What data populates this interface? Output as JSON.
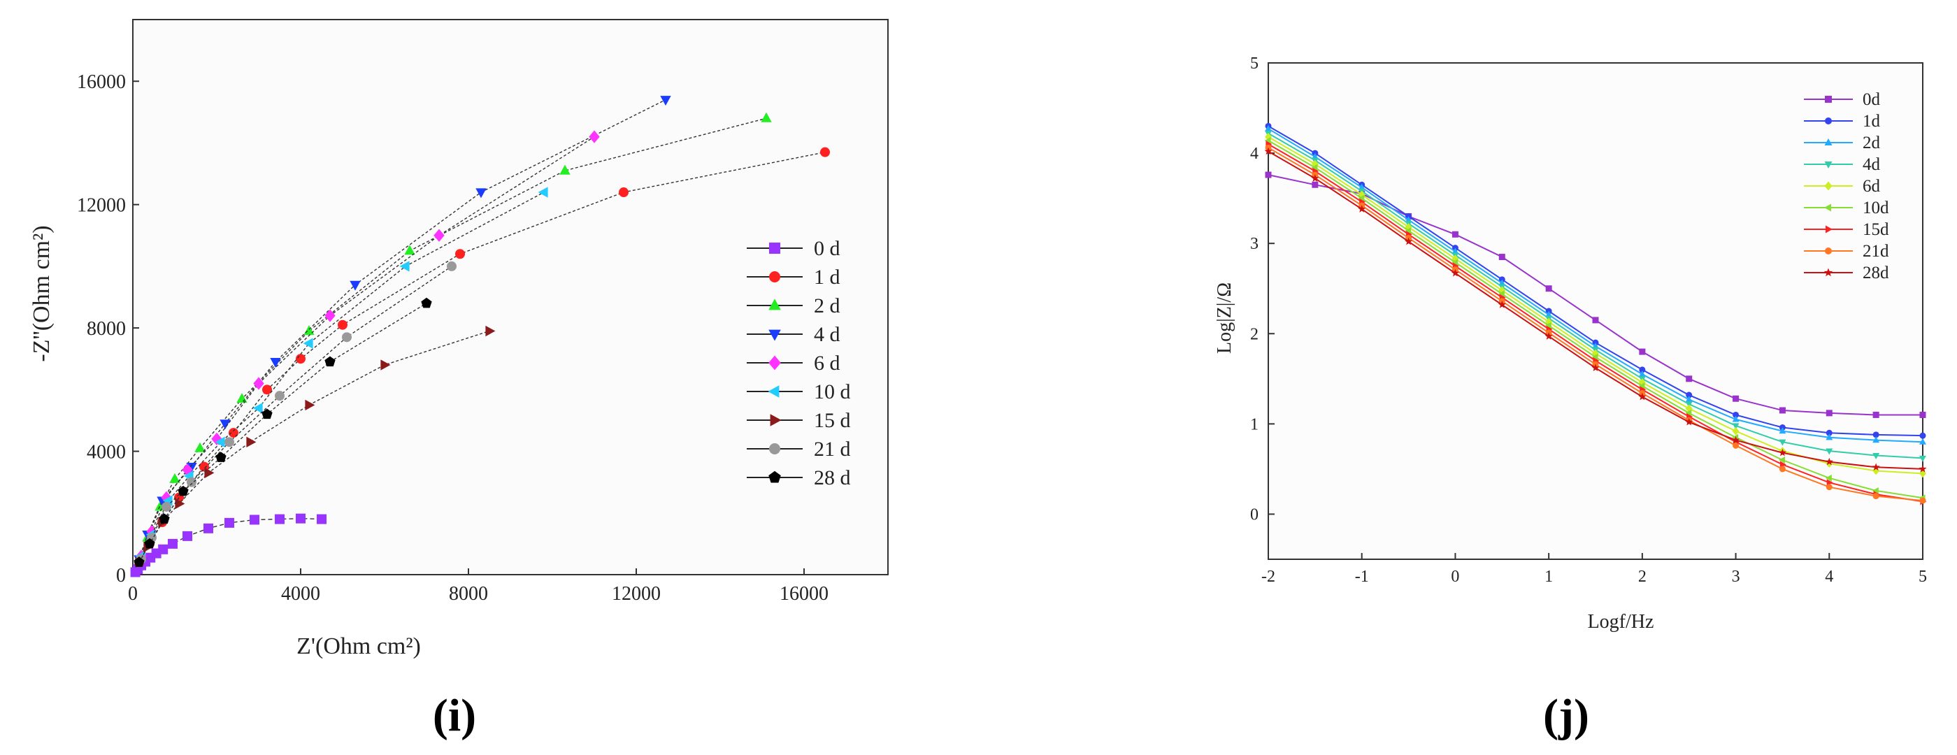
{
  "chart_data": [
    {
      "type": "scatter",
      "title": "",
      "panel_label": "(i)",
      "xlabel": "Z'(Ohm cm²)",
      "ylabel": "-Z''(Ohm cm²)",
      "xlim": [
        0,
        18000
      ],
      "ylim": [
        0,
        18000
      ],
      "xticks": [
        0,
        4000,
        8000,
        12000,
        16000
      ],
      "yticks": [
        0,
        4000,
        8000,
        12000,
        16000
      ],
      "grid": false,
      "legend_position": "right",
      "series": [
        {
          "name": "0 d",
          "color": "#9933ff",
          "marker": "square",
          "x": [
            60,
            120,
            200,
            300,
            420,
            560,
            720,
            950,
            1300,
            1800,
            2300,
            2900,
            3500,
            4000,
            4500
          ],
          "y": [
            80,
            180,
            300,
            420,
            550,
            690,
            820,
            1000,
            1250,
            1500,
            1680,
            1780,
            1800,
            1820,
            1800
          ]
        },
        {
          "name": "1 d",
          "color": "#ff2020",
          "marker": "circle",
          "x": [
            150,
            400,
            700,
            1100,
            1700,
            2400,
            3200,
            4000,
            5000,
            7800,
            11700,
            16500
          ],
          "y": [
            400,
            1000,
            1700,
            2500,
            3500,
            4600,
            6000,
            7000,
            8100,
            10400,
            12400,
            13700
          ]
        },
        {
          "name": "2 d",
          "color": "#22ee22",
          "marker": "triangle-up",
          "x": [
            150,
            350,
            650,
            1000,
            1600,
            2600,
            4200,
            6600,
            10300,
            15100
          ],
          "y": [
            500,
            1200,
            2200,
            3100,
            4100,
            5700,
            7900,
            10500,
            13100,
            14800
          ]
        },
        {
          "name": "4 d",
          "color": "#1a3cff",
          "marker": "triangle-down",
          "x": [
            150,
            350,
            700,
            1400,
            2200,
            3400,
            5300,
            8300,
            12700
          ],
          "y": [
            500,
            1300,
            2400,
            3500,
            4900,
            6900,
            9400,
            12400,
            15400
          ]
        },
        {
          "name": "6 d",
          "color": "#ff33ff",
          "marker": "diamond",
          "x": [
            200,
            450,
            800,
            1300,
            2000,
            3000,
            4700,
            7300,
            11000
          ],
          "y": [
            600,
            1400,
            2500,
            3400,
            4400,
            6200,
            8400,
            11000,
            14200
          ]
        },
        {
          "name": "10 d",
          "color": "#22ccff",
          "marker": "triangle-left",
          "x": [
            200,
            450,
            850,
            1350,
            2100,
            3000,
            4200,
            6500,
            9800
          ],
          "y": [
            600,
            1300,
            2400,
            3200,
            4300,
            5400,
            7500,
            10000,
            12400
          ]
        },
        {
          "name": "15 d",
          "color": "#8b1a1a",
          "marker": "triangle-right",
          "x": [
            150,
            350,
            700,
            1100,
            1800,
            2800,
            4200,
            6000,
            8500
          ],
          "y": [
            400,
            900,
            1700,
            2300,
            3300,
            4300,
            5500,
            6800,
            7900
          ]
        },
        {
          "name": "21 d",
          "color": "#999999",
          "marker": "circle",
          "x": [
            200,
            450,
            800,
            1400,
            2300,
            3500,
            5100,
            7600
          ],
          "y": [
            500,
            1200,
            2200,
            3000,
            4300,
            5800,
            7700,
            10000
          ]
        },
        {
          "name": "28 d",
          "color": "#000000",
          "marker": "pentagon",
          "x": [
            150,
            400,
            750,
            1200,
            2100,
            3200,
            4700,
            7000
          ],
          "y": [
            400,
            1000,
            1800,
            2700,
            3800,
            5200,
            6900,
            8800
          ]
        }
      ]
    },
    {
      "type": "line",
      "title": "",
      "panel_label": "(j)",
      "xlabel": "Logf/Hz",
      "ylabel": "Log|Z|/Ω",
      "xlim": [
        -2,
        5
      ],
      "ylim": [
        -0.5,
        5
      ],
      "xticks": [
        -2,
        -1,
        0,
        1,
        2,
        3,
        4,
        5
      ],
      "yticks": [
        0,
        1,
        2,
        3,
        4,
        5
      ],
      "grid": false,
      "legend_position": "top-right",
      "series": [
        {
          "name": "0d",
          "color": "#9933cc",
          "marker": "square",
          "x": [
            -2,
            -1.5,
            -1,
            -0.5,
            0,
            0.5,
            1,
            1.5,
            2,
            2.5,
            3,
            3.5,
            4,
            4.5,
            5
          ],
          "y": [
            3.76,
            3.65,
            3.55,
            3.3,
            3.1,
            2.85,
            2.5,
            2.15,
            1.8,
            1.5,
            1.28,
            1.15,
            1.12,
            1.1,
            1.1
          ]
        },
        {
          "name": "1d",
          "color": "#3344ee",
          "marker": "circle",
          "x": [
            -2,
            -1.5,
            -1,
            -0.5,
            0,
            0.5,
            1,
            1.5,
            2,
            2.5,
            3,
            3.5,
            4,
            4.5,
            5
          ],
          "y": [
            4.3,
            4.0,
            3.65,
            3.3,
            2.95,
            2.6,
            2.25,
            1.9,
            1.6,
            1.32,
            1.1,
            0.96,
            0.9,
            0.88,
            0.87
          ]
        },
        {
          "name": "2d",
          "color": "#22aaff",
          "marker": "triangle-up",
          "x": [
            -2,
            -1.5,
            -1,
            -0.5,
            0,
            0.5,
            1,
            1.5,
            2,
            2.5,
            3,
            3.5,
            4,
            4.5,
            5
          ],
          "y": [
            4.27,
            3.96,
            3.62,
            3.26,
            2.91,
            2.56,
            2.21,
            1.86,
            1.55,
            1.27,
            1.05,
            0.92,
            0.85,
            0.82,
            0.8
          ]
        },
        {
          "name": "4d",
          "color": "#33ccaa",
          "marker": "triangle-down",
          "x": [
            -2,
            -1.5,
            -1,
            -0.5,
            0,
            0.5,
            1,
            1.5,
            2,
            2.5,
            3,
            3.5,
            4,
            4.5,
            5
          ],
          "y": [
            4.22,
            3.92,
            3.58,
            3.22,
            2.87,
            2.52,
            2.17,
            1.82,
            1.5,
            1.22,
            0.98,
            0.8,
            0.7,
            0.65,
            0.62
          ]
        },
        {
          "name": "6d",
          "color": "#ccee22",
          "marker": "diamond",
          "x": [
            -2,
            -1.5,
            -1,
            -0.5,
            0,
            0.5,
            1,
            1.5,
            2,
            2.5,
            3,
            3.5,
            4,
            4.5,
            5
          ],
          "y": [
            4.18,
            3.88,
            3.54,
            3.18,
            2.83,
            2.48,
            2.13,
            1.78,
            1.46,
            1.17,
            0.92,
            0.7,
            0.56,
            0.48,
            0.45
          ]
        },
        {
          "name": "10d",
          "color": "#88dd33",
          "marker": "triangle-left",
          "x": [
            -2,
            -1.5,
            -1,
            -0.5,
            0,
            0.5,
            1,
            1.5,
            2,
            2.5,
            3,
            3.5,
            4,
            4.5,
            5
          ],
          "y": [
            4.14,
            3.84,
            3.5,
            3.14,
            2.79,
            2.44,
            2.09,
            1.74,
            1.42,
            1.12,
            0.85,
            0.6,
            0.4,
            0.26,
            0.18
          ]
        },
        {
          "name": "15d",
          "color": "#ff2222",
          "marker": "triangle-right",
          "x": [
            -2,
            -1.5,
            -1,
            -0.5,
            0,
            0.5,
            1,
            1.5,
            2,
            2.5,
            3,
            3.5,
            4,
            4.5,
            5
          ],
          "y": [
            4.1,
            3.8,
            3.46,
            3.1,
            2.75,
            2.4,
            2.05,
            1.7,
            1.38,
            1.08,
            0.8,
            0.55,
            0.35,
            0.22,
            0.14
          ]
        },
        {
          "name": "21d",
          "color": "#ff7722",
          "marker": "circle",
          "x": [
            -2,
            -1.5,
            -1,
            -0.5,
            0,
            0.5,
            1,
            1.5,
            2,
            2.5,
            3,
            3.5,
            4,
            4.5,
            5
          ],
          "y": [
            4.06,
            3.76,
            3.42,
            3.06,
            2.71,
            2.36,
            2.01,
            1.66,
            1.34,
            1.04,
            0.76,
            0.5,
            0.3,
            0.2,
            0.15
          ]
        },
        {
          "name": "28d",
          "color": "#cc1111",
          "marker": "star",
          "x": [
            -2,
            -1.5,
            -1,
            -0.5,
            0,
            0.5,
            1,
            1.5,
            2,
            2.5,
            3,
            3.5,
            4,
            4.5,
            5
          ],
          "y": [
            4.02,
            3.72,
            3.38,
            3.02,
            2.67,
            2.32,
            1.97,
            1.62,
            1.3,
            1.02,
            0.82,
            0.68,
            0.58,
            0.52,
            0.5
          ]
        }
      ]
    }
  ]
}
